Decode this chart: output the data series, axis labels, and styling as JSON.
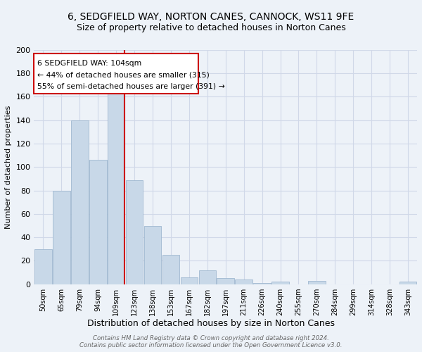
{
  "title": "6, SEDGFIELD WAY, NORTON CANES, CANNOCK, WS11 9FE",
  "subtitle": "Size of property relative to detached houses in Norton Canes",
  "xlabel": "Distribution of detached houses by size in Norton Canes",
  "ylabel": "Number of detached properties",
  "footer1": "Contains HM Land Registry data © Crown copyright and database right 2024.",
  "footer2": "Contains public sector information licensed under the Open Government Licence v3.0.",
  "categories": [
    "50sqm",
    "65sqm",
    "79sqm",
    "94sqm",
    "109sqm",
    "123sqm",
    "138sqm",
    "153sqm",
    "167sqm",
    "182sqm",
    "197sqm",
    "211sqm",
    "226sqm",
    "240sqm",
    "255sqm",
    "270sqm",
    "284sqm",
    "299sqm",
    "314sqm",
    "328sqm",
    "343sqm"
  ],
  "values": [
    30,
    80,
    140,
    106,
    163,
    89,
    50,
    25,
    6,
    12,
    5,
    4,
    1,
    2,
    0,
    3,
    0,
    0,
    0,
    0,
    2
  ],
  "bar_color": "#c8d8e8",
  "bar_edge_color": "#a0b8d0",
  "red_line_bin_index": 4,
  "annotation_text1": "6 SEDGFIELD WAY: 104sqm",
  "annotation_text2": "← 44% of detached houses are smaller (315)",
  "annotation_text3": "55% of semi-detached houses are larger (391) →",
  "annotation_border_color": "#cc0000",
  "red_line_color": "#cc0000",
  "ylim": [
    0,
    200
  ],
  "yticks": [
    0,
    20,
    40,
    60,
    80,
    100,
    120,
    140,
    160,
    180,
    200
  ],
  "grid_color": "#d0d8e8",
  "bg_color": "#edf2f8",
  "title_fontsize": 10,
  "subtitle_fontsize": 9
}
